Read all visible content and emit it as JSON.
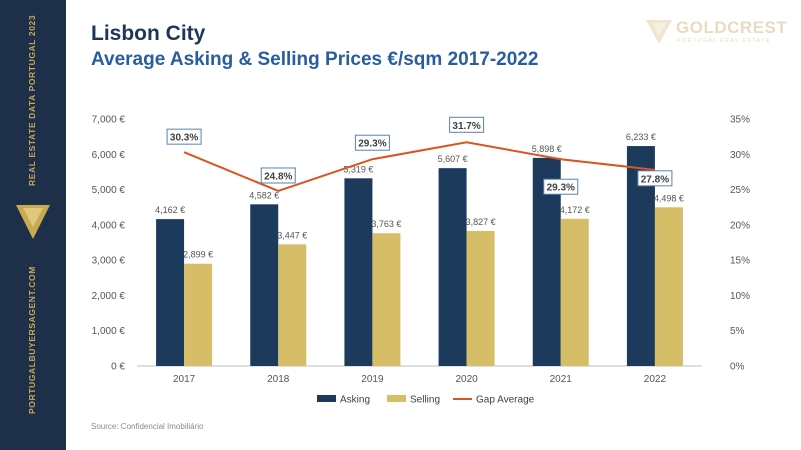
{
  "sidebar": {
    "top_text": "REAL ESTATE DATA PORTUGAL 2023",
    "bottom_text": "PORTUGALBUYERSAGENT.COM"
  },
  "header": {
    "title": "Lisbon City",
    "subtitle": "Average Asking & Selling Prices €/sqm 2017-2022"
  },
  "brand": {
    "name": "GOLDCREST",
    "tagline": "PORTUGAL REAL ESTATE"
  },
  "source": "Source: Confidencial Imobiliário",
  "colors": {
    "asking": "#1b3a5c",
    "selling": "#d6bd68",
    "gap": "#d9541e",
    "sidebar": "#1e2f4a",
    "gold": "#c9a952",
    "title": "#1d3557",
    "subtitle": "#2a5d9f"
  },
  "chart_data": {
    "type": "bar",
    "categories": [
      "2017",
      "2018",
      "2019",
      "2020",
      "2021",
      "2022"
    ],
    "series": [
      {
        "name": "Asking",
        "type": "bar",
        "axis": "left",
        "values": [
          4162,
          4582,
          5319,
          5607,
          5898,
          6233
        ],
        "labels": [
          "4,162 €",
          "4,582 €",
          "5,319 €",
          "5,607 €",
          "5,898 €",
          "6,233 €"
        ]
      },
      {
        "name": "Selling",
        "type": "bar",
        "axis": "left",
        "values": [
          2899,
          3447,
          3763,
          3827,
          4172,
          4498
        ],
        "labels": [
          "2,899 €",
          "3,447 €",
          "3,763 €",
          "3,827 €",
          "4,172 €",
          "4,498 €"
        ]
      },
      {
        "name": "Gap Average",
        "type": "line",
        "axis": "right",
        "values": [
          30.3,
          24.8,
          29.3,
          31.7,
          29.3,
          27.8
        ],
        "labels": [
          "30.3%",
          "24.8%",
          "29.3%",
          "31.7%",
          "29.3%",
          "27.8%"
        ]
      }
    ],
    "ylim": [
      0,
      7000
    ],
    "y_ticks": [
      "0 €",
      "1,000 €",
      "2,000 €",
      "3,000 €",
      "4,000 €",
      "5,000 €",
      "6,000 €",
      "7,000 €"
    ],
    "y2lim": [
      0,
      35
    ],
    "y2_ticks": [
      "0%",
      "5%",
      "10%",
      "15%",
      "20%",
      "25%",
      "30%",
      "35%"
    ],
    "grid": false,
    "legend": "bottom"
  }
}
